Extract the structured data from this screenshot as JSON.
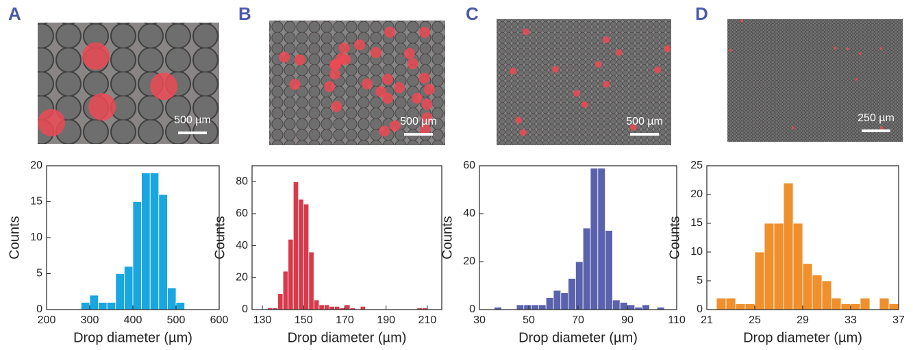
{
  "chart_data": [
    {
      "type": "histogram",
      "panel": "A",
      "scale_bar": "500 µm",
      "xlabel": "Drop diameter (µm)",
      "ylabel": "Counts",
      "color": "#1aa7e0",
      "bins": [
        280,
        300,
        320,
        340,
        360,
        380,
        400,
        420,
        440,
        460,
        480,
        500,
        520
      ],
      "values": [
        1,
        2,
        1,
        1,
        5,
        6,
        15,
        19,
        19,
        16,
        3,
        1
      ],
      "xlim": [
        200,
        600
      ],
      "xticks": [
        200,
        300,
        400,
        500,
        600
      ],
      "ylim": [
        0,
        20
      ],
      "yticks": [
        0,
        5,
        10,
        15,
        20
      ]
    },
    {
      "type": "histogram",
      "panel": "B",
      "scale_bar": "500 µm",
      "xlabel": "Drop diameter (µm)",
      "ylabel": "Counts",
      "color": "#d83a4b",
      "bins": [
        132.5,
        135,
        137.5,
        140,
        142.5,
        145,
        147.5,
        150,
        152.5,
        155,
        157.5,
        160,
        162.5,
        165,
        167.5,
        170,
        172.5,
        175,
        177.5,
        180,
        182.5,
        185,
        187.5,
        190,
        192.5,
        195,
        197.5,
        200,
        202.5,
        205,
        207.5,
        210,
        212.5
      ],
      "values": [
        1,
        1,
        10,
        24,
        44,
        80,
        69,
        66,
        36,
        6,
        3,
        3,
        2,
        2,
        1,
        3,
        1,
        0,
        2,
        0,
        0,
        0,
        0,
        0,
        0,
        0,
        0,
        0,
        0,
        1,
        1,
        0
      ],
      "xlim": [
        125,
        217
      ],
      "xticks": [
        130,
        150,
        170,
        190,
        210
      ],
      "ylim": [
        0,
        90
      ],
      "yticks": [
        0,
        20,
        40,
        60,
        80
      ]
    },
    {
      "type": "histogram",
      "panel": "C",
      "scale_bar": "500 µm",
      "xlabel": "Drop diameter (µm)",
      "ylabel": "Counts",
      "color": "#5b62ad",
      "bins": [
        36,
        39,
        42,
        45,
        48,
        51,
        54,
        57,
        60,
        63,
        66,
        69,
        72,
        75,
        78,
        81,
        84,
        87,
        90,
        93,
        96,
        99,
        102,
        105
      ],
      "values": [
        1,
        0,
        0,
        2,
        2,
        2,
        2,
        5,
        8,
        7,
        13,
        20,
        34,
        59,
        59,
        33,
        4,
        3,
        2,
        1,
        2,
        0,
        1
      ],
      "xlim": [
        30,
        110
      ],
      "xticks": [
        30,
        50,
        70,
        90,
        110
      ],
      "ylim": [
        0,
        60
      ],
      "yticks": [
        0,
        20,
        40,
        60
      ]
    },
    {
      "type": "histogram",
      "panel": "D",
      "scale_bar": "250 µm",
      "xlabel": "Drop diameter (µm)",
      "ylabel": "Counts",
      "color": "#f0902c",
      "bins": [
        21.8,
        22.6,
        23.4,
        24.2,
        25,
        25.8,
        26.6,
        27.4,
        28.2,
        29,
        29.8,
        30.6,
        31.4,
        32.2,
        33,
        33.8,
        34.6,
        35.4,
        36.2,
        37
      ],
      "values": [
        2,
        2,
        1,
        1,
        10,
        15,
        15,
        22,
        15,
        8,
        6,
        5,
        2,
        1,
        1,
        2,
        0,
        2,
        1
      ],
      "xlim": [
        21,
        37
      ],
      "xticks": [
        21,
        25,
        29,
        33,
        37
      ],
      "ylim": [
        0,
        25
      ],
      "yticks": [
        0,
        5,
        10,
        15,
        20,
        25
      ]
    }
  ]
}
